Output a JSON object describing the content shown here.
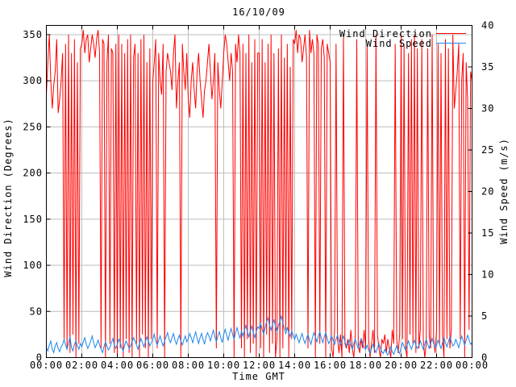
{
  "title": "16/10/09",
  "axes": {
    "x_label": "Time GMT",
    "y_left_label": "Wind Direction (Degrees)",
    "y_right_label": "Wind Speed (m/s)",
    "x_tick_labels": [
      "00:00",
      "02:00",
      "04:00",
      "06:00",
      "08:00",
      "10:00",
      "12:00",
      "14:00",
      "16:00",
      "18:00",
      "20:00",
      "22:00",
      "00:00"
    ],
    "y_left_tick_labels": [
      "0",
      "50",
      "100",
      "150",
      "200",
      "250",
      "300",
      "350"
    ],
    "y_right_tick_labels": [
      "0",
      "5",
      "10",
      "15",
      "20",
      "25",
      "30",
      "35",
      "40"
    ]
  },
  "colors": {
    "wind_direction": "#ff0000",
    "wind_speed": "#1c86ee",
    "grid": "#bebebe",
    "border": "#000000",
    "background": "#ffffff"
  },
  "legend": {
    "position": "top-right-inside",
    "entries": [
      "Wind Direction",
      "Wind Speed"
    ]
  },
  "chart_data": {
    "type": "line",
    "title": "16/10/09",
    "xlabel": "Time GMT",
    "x_unit": "time of day GMT, samples every 5 minutes from 00:00 to 24:00",
    "x_range_hours": [
      0,
      24
    ],
    "grid": true,
    "legend_position": "top-right-inside",
    "y_left": {
      "label": "Wind Direction (Degrees)",
      "range": [
        0,
        360
      ],
      "ticks": [
        0,
        50,
        100,
        150,
        200,
        250,
        300,
        350
      ]
    },
    "y_right": {
      "label": "Wind Speed (m/s)",
      "range": [
        0,
        40
      ],
      "ticks": [
        0,
        5,
        10,
        15,
        20,
        25,
        30,
        35,
        40
      ]
    },
    "series": [
      {
        "name": "Wind Direction",
        "axis": "left",
        "color": "#ff0000",
        "values": [
          285,
          320,
          350,
          300,
          270,
          295,
          310,
          345,
          265,
          280,
          300,
          330,
          20,
          340,
          10,
          350,
          5,
          330,
          25,
          345,
          0,
          320,
          15,
          335,
          340,
          355,
          330,
          345,
          350,
          320,
          335,
          350,
          340,
          325,
          345,
          355,
          330,
          10,
          345,
          340,
          0,
          320,
          350,
          15,
          335,
          330,
          5,
          340,
          0,
          350,
          10,
          340,
          0,
          330,
          20,
          345,
          5,
          350,
          0,
          325,
          340,
          15,
          330,
          0,
          345,
          25,
          350,
          10,
          320,
          0,
          335,
          20,
          300,
          320,
          345,
          10,
          330,
          300,
          285,
          340,
          0,
          310,
          330,
          320,
          310,
          290,
          330,
          350,
          270,
          300,
          320,
          0,
          340,
          310,
          290,
          330,
          280,
          260,
          300,
          320,
          290,
          270,
          310,
          330,
          300,
          280,
          260,
          290,
          300,
          320,
          340,
          310,
          280,
          300,
          330,
          10,
          320,
          290,
          270,
          300,
          330,
          350,
          340,
          320,
          300,
          330,
          310,
          0,
          340,
          320,
          350,
          330,
          10,
          340,
          0,
          330,
          20,
          350,
          5,
          320,
          15,
          345,
          0,
          330,
          330,
          10,
          345,
          0,
          320,
          25,
          340,
          5,
          350,
          15,
          330,
          0,
          20,
          335,
          0,
          350,
          10,
          325,
          30,
          340,
          0,
          315,
          20,
          345,
          340,
          355,
          330,
          350,
          345,
          320,
          335,
          350,
          325,
          10,
          355,
          330,
          345,
          330,
          0,
          350,
          340,
          15,
          335,
          345,
          325,
          0,
          340,
          330,
          320,
          10,
          0,
          30,
          340,
          20,
          5,
          25,
          0,
          350,
          15,
          10,
          20,
          5,
          30,
          10,
          0,
          25,
          345,
          15,
          5,
          20,
          10,
          30,
          10,
          340,
          20,
          0,
          15,
          30,
          5,
          350,
          25,
          10,
          0,
          20,
          15,
          25,
          5,
          20,
          10,
          0,
          30,
          15,
          340,
          20,
          5,
          25,
          350,
          20,
          340,
          10,
          0,
          330,
          25,
          345,
          15,
          350,
          5,
          335,
          10,
          30,
          345,
          20,
          0,
          15,
          335,
          25,
          10,
          350,
          20,
          5,
          30,
          340,
          15,
          330,
          25,
          0,
          345,
          20,
          335,
          10,
          30,
          350,
          270,
          290,
          310,
          340,
          20,
          300,
          330,
          0,
          320,
          280,
          30,
          310,
          300
        ]
      },
      {
        "name": "Wind Speed",
        "axis": "right",
        "color": "#1c86ee",
        "values": [
          1.2,
          0.8,
          1.5,
          2.0,
          1.0,
          0.6,
          1.4,
          1.8,
          1.1,
          0.7,
          1.3,
          1.6,
          2.2,
          1.5,
          1.0,
          1.8,
          2.5,
          1.2,
          0.8,
          1.6,
          2.0,
          1.4,
          1.0,
          1.7,
          1.3,
          1.9,
          2.4,
          1.6,
          1.1,
          1.5,
          2.0,
          2.6,
          1.8,
          1.2,
          1.6,
          2.1,
          1.5,
          1.0,
          0.6,
          1.3,
          1.9,
          1.4,
          0.9,
          1.2,
          1.8,
          2.3,
          1.5,
          1.1,
          1.6,
          2.2,
          1.8,
          1.2,
          0.8,
          1.5,
          2.0,
          1.6,
          1.1,
          1.4,
          1.9,
          2.4,
          2.0,
          1.5,
          1.0,
          1.7,
          2.3,
          1.8,
          1.3,
          1.9,
          2.5,
          2.0,
          1.4,
          1.8,
          2.2,
          2.8,
          2.0,
          1.5,
          2.1,
          2.6,
          1.9,
          1.4,
          2.0,
          2.5,
          3.0,
          2.2,
          1.8,
          2.4,
          2.9,
          2.1,
          1.6,
          2.2,
          2.7,
          2.0,
          1.5,
          2.1,
          2.6,
          1.9,
          2.3,
          2.9,
          2.4,
          1.8,
          2.5,
          3.1,
          2.3,
          1.7,
          2.4,
          2.9,
          2.2,
          1.6,
          2.5,
          3.0,
          2.6,
          2.0,
          2.7,
          3.3,
          2.5,
          1.9,
          2.6,
          3.1,
          2.4,
          1.8,
          2.8,
          3.4,
          2.7,
          2.1,
          2.9,
          3.5,
          2.8,
          2.2,
          3.0,
          3.6,
          2.9,
          2.3,
          3.2,
          2.6,
          3.3,
          3.9,
          3.1,
          2.5,
          3.2,
          3.8,
          3.0,
          2.4,
          3.1,
          3.7,
          3.5,
          4.1,
          3.4,
          2.8,
          3.6,
          4.3,
          4.8,
          3.9,
          3.3,
          4.0,
          4.6,
          3.7,
          3.1,
          3.8,
          4.4,
          5.0,
          4.2,
          3.5,
          2.9,
          3.6,
          3.0,
          2.5,
          3.2,
          2.7,
          2.2,
          2.8,
          2.3,
          1.8,
          2.4,
          2.9,
          2.2,
          1.7,
          2.3,
          2.8,
          2.1,
          1.6,
          2.4,
          3.0,
          2.5,
          1.9,
          2.6,
          3.1,
          2.4,
          1.8,
          2.5,
          3.0,
          2.3,
          1.7,
          2.0,
          2.6,
          2.1,
          1.6,
          2.2,
          2.7,
          2.0,
          1.5,
          2.1,
          2.6,
          1.9,
          1.4,
          1.6,
          2.1,
          1.5,
          1.0,
          1.7,
          2.2,
          1.6,
          1.1,
          1.8,
          2.3,
          1.7,
          1.2,
          1.0,
          1.5,
          0.9,
          0.5,
          1.1,
          1.6,
          1.0,
          0.6,
          1.2,
          1.7,
          1.1,
          0.7,
          0.5,
          1.0,
          0.6,
          0.3,
          0.8,
          1.3,
          0.7,
          0.4,
          0.9,
          1.4,
          0.8,
          0.5,
          1.2,
          1.8,
          1.3,
          0.9,
          1.5,
          2.0,
          1.4,
          1.0,
          1.6,
          2.1,
          1.5,
          1.1,
          1.4,
          2.0,
          1.5,
          1.0,
          1.6,
          2.2,
          1.6,
          1.1,
          1.7,
          2.3,
          1.7,
          1.2,
          1.5,
          2.1,
          1.6,
          1.1,
          1.8,
          2.4,
          1.8,
          1.3,
          1.9,
          2.5,
          1.9,
          1.4,
          1.6,
          2.2,
          1.7,
          1.2,
          1.9,
          2.6,
          2.0,
          1.5,
          2.1,
          2.7,
          2.1,
          1.6,
          1.8
        ]
      }
    ]
  }
}
